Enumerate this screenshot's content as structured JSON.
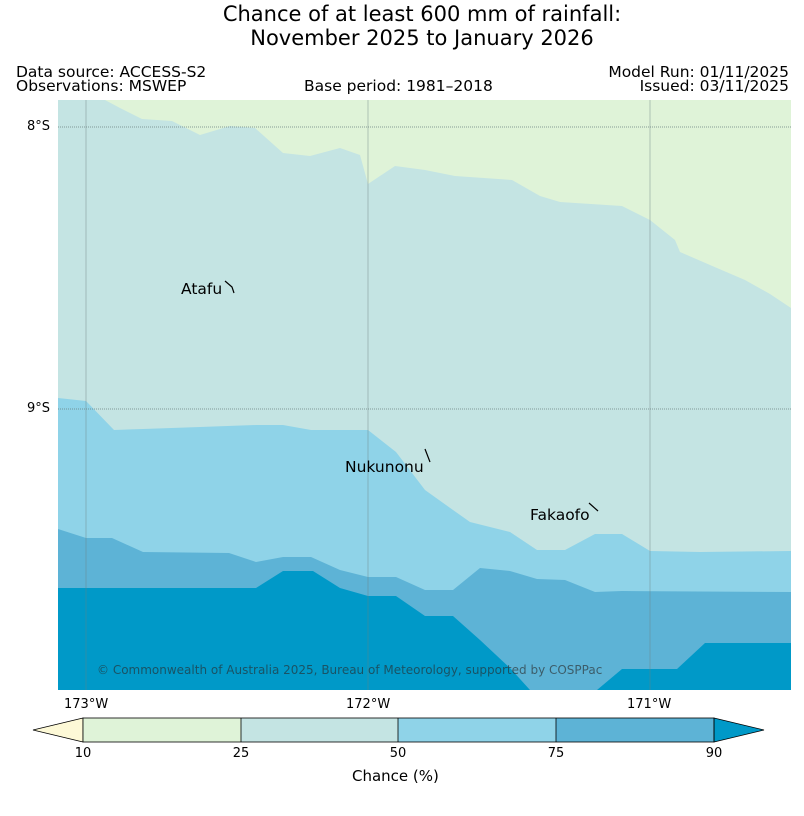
{
  "title": {
    "line1": "Chance of at least 600 mm of rainfall:",
    "line2": "November 2025 to January 2026"
  },
  "meta": {
    "data_source": "Data source: ACCESS-S2",
    "observations": "Observations: MSWEP",
    "base_period": "Base period: 1981–2018",
    "model_run": "Model Run: 01/11/2025",
    "issued": "Issued: 03/11/2025"
  },
  "axes": {
    "lat_labels": [
      "8°S",
      "9°S"
    ],
    "lon_labels": [
      "173°W",
      "172°W",
      "171°W"
    ]
  },
  "places": [
    "Atafu",
    "Nukunonu",
    "Fakaofo"
  ],
  "copyright": "© Commonwealth of Australia 2025, Bureau of Meteorology, supported by COSPPac",
  "colorbar": {
    "title": "Chance (%)",
    "ticks": [
      "10",
      "25",
      "50",
      "75",
      "90"
    ],
    "colors": [
      "#fdf9d7",
      "#dff3d8",
      "#c4e4e3",
      "#8fd3e8",
      "#5db3d6",
      "#0099c8"
    ]
  }
}
